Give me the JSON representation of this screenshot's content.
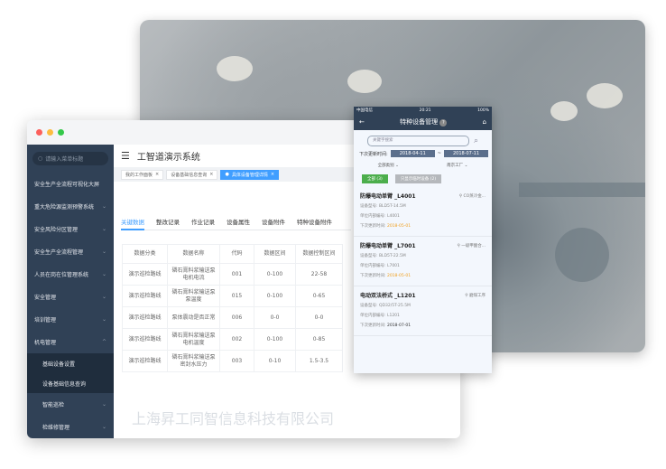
{
  "colors": {
    "sidebar": "#304156",
    "accent": "#409eff",
    "green": "#4cae4c",
    "orange": "#f0a020"
  },
  "desktop": {
    "search_placeholder": "请输入菜单标题",
    "menu": [
      {
        "label": "安全生产全流程可视化大屏",
        "chevron": false
      },
      {
        "label": "重大危险源监测预警系统",
        "chevron": true
      },
      {
        "label": "安全风险分区管理",
        "chevron": true
      },
      {
        "label": "安全生产全流程管理",
        "chevron": true
      },
      {
        "label": "人员在岗在位管理系统",
        "chevron": true
      },
      {
        "label": "安全管理",
        "chevron": true
      },
      {
        "label": "培训管理",
        "chevron": true
      },
      {
        "label": "机电管理",
        "chevron": true,
        "expanded": true
      }
    ],
    "submenu": [
      "基础设备设置",
      "设备基础信息查询"
    ],
    "menu_after": [
      "智能巡检",
      "检维修管理"
    ],
    "title": "工智道演示系统",
    "open_tabs": [
      "我的工作面板",
      "设备基础信息查询",
      "具体设备管理详情"
    ],
    "content_tabs": [
      "关键数据",
      "整改记录",
      "作业记录",
      "设备属性",
      "设备附件",
      "特种设备附件"
    ],
    "table": {
      "headers": [
        "数据分类",
        "数据名称",
        "代码",
        "数据区间",
        "数据控制区间"
      ],
      "rows": [
        [
          "演示巡检路线",
          "磷石膏料浆输送泵电机电流",
          "001",
          "0-100",
          "22-58"
        ],
        [
          "演示巡检路线",
          "磷石膏料浆输送泵泵温度",
          "015",
          "0-100",
          "0-65"
        ],
        [
          "演示巡检路线",
          "泵体震动是否正常",
          "006",
          "0-0",
          "0-0"
        ],
        [
          "演示巡检路线",
          "磷石膏料浆输送泵电机温度",
          "002",
          "0-100",
          "0-85"
        ],
        [
          "演示巡检路线",
          "磷石膏料浆输送泵密封水压力",
          "003",
          "0-10",
          "1.5-3.5"
        ]
      ]
    },
    "watermark": "上海昇工同智信息科技有限公司"
  },
  "mobile": {
    "status": {
      "carrier": "中国电信",
      "time": "20:21",
      "battery": "100%"
    },
    "title": "特种设备管理",
    "search_placeholder": "关键字搜索",
    "date_label": "下次更新时间:",
    "date_from": "2018-04-11",
    "date_sep": "~",
    "date_to": "2018-07-11",
    "filter_type": "全部类别",
    "filter_site": "南京工厂",
    "btn_all": "全部 (3)",
    "btn_near": "只显示临时设备 (2)",
    "labels": {
      "model": "设备型号:",
      "code": "单位内部编号:",
      "next": "下次更新时间:"
    },
    "items": [
      {
        "name": "防爆电动单臂 _L4001",
        "location": "CO蒸冷金...",
        "model": "BLD5T-14.5M",
        "code": "L4001",
        "next": "2018-05-01",
        "overdue": true
      },
      {
        "name": "防爆电动单臂 _L7001",
        "location": "一级甲酸合...",
        "model": "BLD5T-22.5M",
        "code": "L7001",
        "next": "2018-05-01",
        "overdue": true
      },
      {
        "name": "电动双法桥式 _L1201",
        "location": "磨煤工序",
        "model": "QD32/5T-25.5M",
        "code": "L1201",
        "next": "2018-07-01",
        "overdue": false
      }
    ]
  }
}
